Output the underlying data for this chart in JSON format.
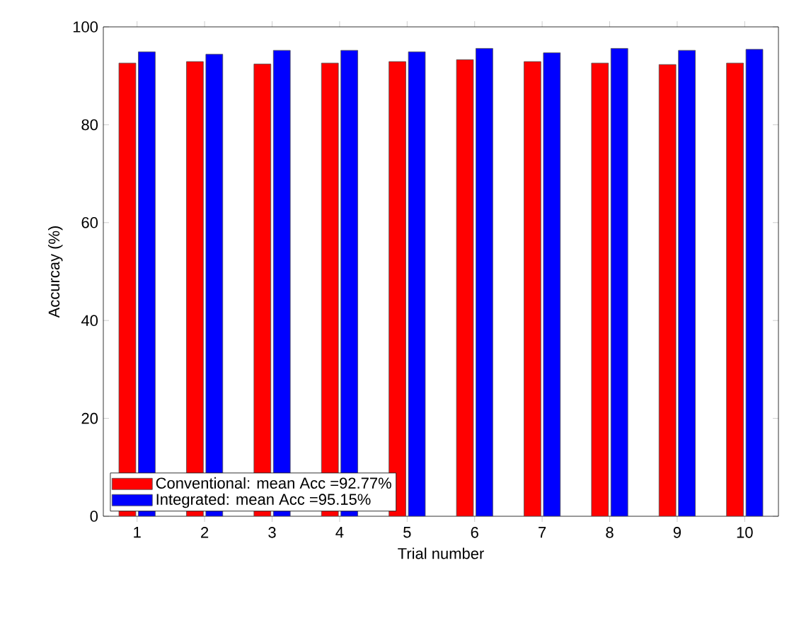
{
  "chart_data": {
    "type": "bar",
    "xlabel": "Trial number",
    "ylabel": "Accurcay (%)",
    "categories": [
      "1",
      "2",
      "3",
      "4",
      "5",
      "6",
      "7",
      "8",
      "9",
      "10"
    ],
    "series": [
      {
        "name": "Conventional: mean Acc =92.77%",
        "color": "#ff0000",
        "values": [
          92.6,
          92.9,
          92.4,
          92.6,
          92.9,
          93.3,
          92.9,
          92.6,
          92.3,
          92.6
        ]
      },
      {
        "name": "Integrated: mean Acc =95.15%",
        "color": "#0000ff",
        "values": [
          94.9,
          94.4,
          95.2,
          95.2,
          94.9,
          95.6,
          94.7,
          95.6,
          95.2,
          95.4
        ]
      }
    ],
    "ylim": [
      0,
      100
    ],
    "yticks": [
      0,
      20,
      40,
      60,
      80,
      100
    ],
    "legend": "bottom left",
    "grid": false
  }
}
